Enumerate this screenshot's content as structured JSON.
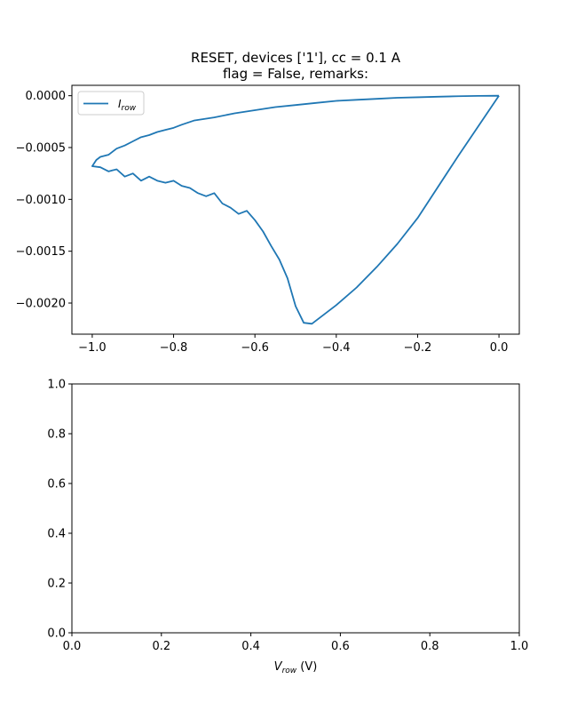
{
  "chart_data": [
    {
      "type": "line",
      "title_line1": "RESET, devices ['1'], cc = 0.1 A",
      "title_line2": "flag = False, remarks:",
      "xlabel": "",
      "ylabel": "",
      "xlim": [
        -1.05,
        0.05
      ],
      "ylim": [
        -0.0023,
        0.0001
      ],
      "xticks": [
        -1.0,
        -0.8,
        -0.6,
        -0.4,
        -0.2,
        0.0
      ],
      "xtick_labels": [
        "−1.0",
        "−0.8",
        "−0.6",
        "−0.4",
        "−0.2",
        "0.0"
      ],
      "yticks": [
        0.0,
        -0.0005,
        -0.001,
        -0.0015,
        -0.002
      ],
      "ytick_labels": [
        "0.0000",
        "−0.0005",
        "−0.0010",
        "−0.0015",
        "−0.0020"
      ],
      "grid": false,
      "legend_position": "upper-left",
      "series": [
        {
          "name": "I",
          "name_sub": "row",
          "color": "#1f77b4",
          "x": [
            0.0,
            -0.1,
            -0.2,
            -0.25,
            -0.3,
            -0.35,
            -0.4,
            -0.42,
            -0.44,
            -0.46,
            -0.48,
            -0.5,
            -0.52,
            -0.54,
            -0.56,
            -0.58,
            -0.6,
            -0.62,
            -0.64,
            -0.66,
            -0.68,
            -0.7,
            -0.72,
            -0.74,
            -0.76,
            -0.78,
            -0.8,
            -0.82,
            -0.84,
            -0.86,
            -0.88,
            -0.9,
            -0.92,
            -0.94,
            -0.96,
            -0.98,
            -1.0,
            -0.99,
            -0.98,
            -0.96,
            -0.94,
            -0.92,
            -0.9,
            -0.88,
            -0.86,
            -0.84,
            -0.82,
            -0.8,
            -0.78,
            -0.75,
            -0.7,
            -0.65,
            -0.6,
            -0.55,
            -0.5,
            -0.45,
            -0.4,
            -0.35,
            -0.3,
            -0.25,
            -0.2,
            -0.15,
            -0.1,
            -0.05,
            0.0
          ],
          "y": [
            0.0,
            -0.00058,
            -0.00118,
            -0.00143,
            -0.00165,
            -0.00185,
            -0.00202,
            -0.00208,
            -0.00214,
            -0.0022,
            -0.00219,
            -0.00203,
            -0.00176,
            -0.00158,
            -0.00145,
            -0.00131,
            -0.0012,
            -0.00111,
            -0.00114,
            -0.00108,
            -0.00104,
            -0.00094,
            -0.00097,
            -0.00094,
            -0.00089,
            -0.00087,
            -0.00082,
            -0.00084,
            -0.00082,
            -0.00078,
            -0.00082,
            -0.00075,
            -0.00078,
            -0.00071,
            -0.00073,
            -0.00069,
            -0.00068,
            -0.00062,
            -0.00059,
            -0.00057,
            -0.00051,
            -0.00048,
            -0.00044,
            -0.0004,
            -0.00038,
            -0.00035,
            -0.00033,
            -0.00031,
            -0.00028,
            -0.00024,
            -0.00021,
            -0.00017,
            -0.00014,
            -0.00011,
            -9e-05,
            -7e-05,
            -5e-05,
            -4e-05,
            -3e-05,
            -2e-05,
            -1.5e-05,
            -1e-05,
            -5e-06,
            -2e-06,
            0.0
          ]
        }
      ]
    },
    {
      "type": "line",
      "xlabel": "V",
      "xlabel_sub": "row",
      "xlabel_unit": " (V)",
      "ylabel": "",
      "xlim": [
        0.0,
        1.0
      ],
      "ylim": [
        0.0,
        1.0
      ],
      "xticks": [
        0.0,
        0.2,
        0.4,
        0.6,
        0.8,
        1.0
      ],
      "xtick_labels": [
        "0.0",
        "0.2",
        "0.4",
        "0.6",
        "0.8",
        "1.0"
      ],
      "yticks": [
        0.0,
        0.2,
        0.4,
        0.6,
        0.8,
        1.0
      ],
      "ytick_labels": [
        "0.0",
        "0.2",
        "0.4",
        "0.6",
        "0.8",
        "1.0"
      ],
      "grid": false,
      "series": []
    }
  ]
}
